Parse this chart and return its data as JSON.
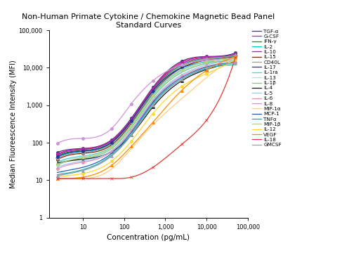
{
  "title": "Non-Human Primate Cytokine / Chemokine Magnetic Bead Panel\nStandard Curves",
  "xlabel": "Concentration (pg/mL)",
  "ylabel": "Median Fluoreescence Intensity (MFI)",
  "background_color": "#ffffff",
  "series": [
    {
      "name": "TGF-α",
      "color": "#4a3080",
      "marker": "o",
      "markersize": 3,
      "x": [
        2.4,
        10,
        50,
        150,
        500,
        2500,
        10000,
        50000
      ],
      "y": [
        55,
        70,
        120,
        450,
        3000,
        15000,
        20000,
        25000
      ]
    },
    {
      "name": "G-CSF",
      "color": "#e91e8c",
      "marker": "o",
      "markersize": 3,
      "x": [
        2.4,
        10,
        50,
        150,
        500,
        2500,
        10000,
        50000
      ],
      "y": [
        50,
        68,
        115,
        420,
        2800,
        14000,
        19500,
        23000
      ]
    },
    {
      "name": "IFN-γ",
      "color": "#2e7d32",
      "marker": "s",
      "markersize": 3,
      "x": [
        2.4,
        10,
        50,
        150,
        500,
        2500,
        10000,
        50000
      ],
      "y": [
        45,
        62,
        105,
        390,
        2500,
        12000,
        18000,
        22000
      ]
    },
    {
      "name": "IL-2",
      "color": "#00bcd4",
      "marker": "D",
      "markersize": 3,
      "x": [
        2.4,
        10,
        50,
        150,
        500,
        2500,
        10000,
        50000
      ],
      "y": [
        40,
        58,
        98,
        360,
        2300,
        11000,
        17000,
        21000
      ]
    },
    {
      "name": "IL-10",
      "color": "#9c27b0",
      "marker": "o",
      "markersize": 3,
      "x": [
        2.4,
        10,
        50,
        150,
        500,
        2500,
        10000,
        50000
      ],
      "y": [
        48,
        66,
        112,
        410,
        2700,
        13000,
        19000,
        23000
      ]
    },
    {
      "name": "IL-15",
      "color": "#7b2800",
      "marker": "o",
      "markersize": 3,
      "x": [
        2.4,
        10,
        50,
        150,
        500,
        2500,
        10000,
        50000
      ],
      "y": [
        35,
        52,
        88,
        330,
        2100,
        10000,
        16000,
        20000
      ]
    },
    {
      "name": "CD40L",
      "color": "#9e9e9e",
      "marker": "D",
      "markersize": 3,
      "x": [
        2.4,
        10,
        50,
        150,
        500,
        2500,
        10000,
        50000
      ],
      "y": [
        38,
        55,
        95,
        360,
        2200,
        11000,
        17500,
        21500
      ]
    },
    {
      "name": "IL-17",
      "color": "#283593",
      "marker": "o",
      "markersize": 3,
      "x": [
        2.4,
        10,
        50,
        150,
        500,
        2500,
        10000,
        50000
      ],
      "y": [
        42,
        60,
        102,
        380,
        2400,
        10000,
        14000,
        18000
      ]
    },
    {
      "name": "IL-1ra",
      "color": "#4dd0e1",
      "marker": "None",
      "markersize": 3,
      "x": [
        2.4,
        10,
        50,
        150,
        500,
        2500,
        10000,
        50000
      ],
      "y": [
        30,
        44,
        80,
        290,
        1900,
        9000,
        15000,
        19000
      ]
    },
    {
      "name": "IL-13",
      "color": "#b2dfdb",
      "marker": "None",
      "markersize": 3,
      "x": [
        2.4,
        10,
        50,
        150,
        500,
        2500,
        10000,
        50000
      ],
      "y": [
        28,
        42,
        75,
        270,
        1700,
        8000,
        13500,
        17000
      ]
    },
    {
      "name": "IL-1β",
      "color": "#81c784",
      "marker": "None",
      "markersize": 3,
      "x": [
        2.4,
        10,
        50,
        150,
        500,
        2500,
        10000,
        50000
      ],
      "y": [
        25,
        38,
        70,
        250,
        1600,
        7500,
        13000,
        16000
      ]
    },
    {
      "name": "IL-4",
      "color": "#1a1a1a",
      "marker": "^",
      "markersize": 3,
      "x": [
        2.4,
        10,
        50,
        150,
        500,
        2500,
        10000,
        50000
      ],
      "y": [
        28,
        36,
        58,
        160,
        900,
        4500,
        9000,
        15000
      ]
    },
    {
      "name": "IL-5",
      "color": "#90caf9",
      "marker": "x",
      "markersize": 3,
      "x": [
        2.4,
        10,
        50,
        150,
        500,
        2500,
        10000,
        50000
      ],
      "y": [
        22,
        32,
        62,
        220,
        1400,
        6500,
        12000,
        15000
      ]
    },
    {
      "name": "IL-6",
      "color": "#f48fb1",
      "marker": "o",
      "markersize": 3,
      "x": [
        2.4,
        10,
        50,
        150,
        500,
        2500,
        10000,
        50000
      ],
      "y": [
        20,
        30,
        58,
        210,
        1300,
        6000,
        11000,
        14000
      ]
    },
    {
      "name": "IL-8",
      "color": "#ce93d8",
      "marker": "o",
      "markersize": 3,
      "x": [
        2.4,
        10,
        50,
        150,
        500,
        2500,
        10000,
        50000
      ],
      "y": [
        95,
        130,
        240,
        1100,
        4500,
        12000,
        16000,
        19000
      ]
    },
    {
      "name": "MIP-1α",
      "color": "#ffcc80",
      "marker": "None",
      "markersize": 3,
      "x": [
        2.4,
        10,
        50,
        150,
        500,
        2500,
        10000,
        50000
      ],
      "y": [
        11,
        11,
        20,
        70,
        300,
        1500,
        5500,
        20000
      ]
    },
    {
      "name": "MCP-1",
      "color": "#1565c0",
      "marker": "None",
      "markersize": 3,
      "x": [
        2.4,
        10,
        50,
        150,
        500,
        2500,
        10000,
        50000
      ],
      "y": [
        16,
        22,
        52,
        190,
        1200,
        5500,
        10500,
        13500
      ]
    },
    {
      "name": "TNFα",
      "color": "#26a69a",
      "marker": "None",
      "markersize": 3,
      "x": [
        2.4,
        10,
        50,
        150,
        500,
        2500,
        10000,
        50000
      ],
      "y": [
        14,
        19,
        47,
        170,
        1100,
        5000,
        9500,
        12000
      ]
    },
    {
      "name": "MIP-1β",
      "color": "#aed581",
      "marker": "o",
      "markersize": 3,
      "x": [
        2.4,
        10,
        50,
        150,
        500,
        2500,
        10000,
        50000
      ],
      "y": [
        26,
        40,
        78,
        280,
        1800,
        8500,
        14500,
        18000
      ]
    },
    {
      "name": "IL-12",
      "color": "#fdd835",
      "marker": "o",
      "markersize": 3,
      "x": [
        2.4,
        10,
        50,
        150,
        500,
        2500,
        10000,
        50000
      ],
      "y": [
        12,
        15,
        32,
        110,
        600,
        3200,
        7000,
        17000
      ]
    },
    {
      "name": "VEGF",
      "color": "#fb8c00",
      "marker": "^",
      "markersize": 3,
      "x": [
        2.4,
        10,
        50,
        150,
        500,
        2500,
        10000,
        50000
      ],
      "y": [
        11,
        12,
        25,
        80,
        350,
        2500,
        8500,
        20000
      ]
    },
    {
      "name": "IL-18",
      "color": "#e53935",
      "marker": "x",
      "markersize": 3,
      "x": [
        2.4,
        10,
        50,
        150,
        500,
        2500,
        10000,
        50000
      ],
      "y": [
        11,
        11,
        11,
        12,
        22,
        90,
        400,
        19000
      ]
    },
    {
      "name": "GMCSF",
      "color": "#90a4ae",
      "marker": "^",
      "markersize": 3,
      "x": [
        2.4,
        10,
        50,
        150,
        500,
        2500,
        10000,
        50000
      ],
      "y": [
        13,
        18,
        44,
        160,
        1000,
        5000,
        10000,
        13500
      ]
    }
  ]
}
